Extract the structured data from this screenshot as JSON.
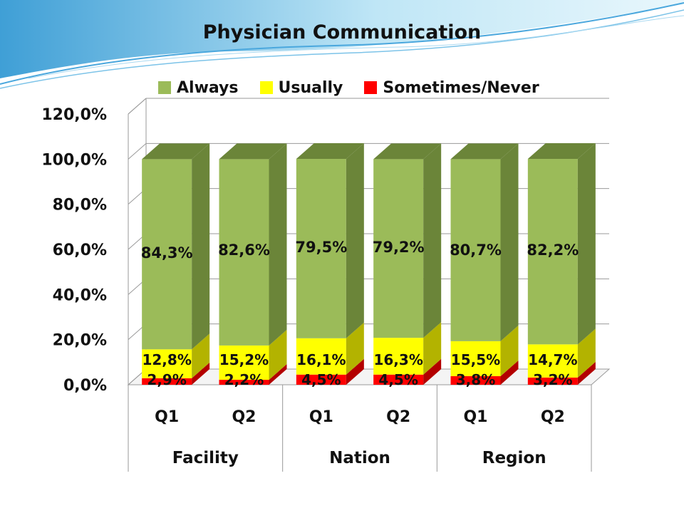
{
  "chart_data": {
    "type": "bar",
    "stacked": true,
    "title": "Physician Communication",
    "groups": [
      {
        "label": "Facility",
        "categories": [
          "Q1",
          "Q2"
        ]
      },
      {
        "label": "Nation",
        "categories": [
          "Q1",
          "Q2"
        ]
      },
      {
        "label": "Region",
        "categories": [
          "Q1",
          "Q2"
        ]
      }
    ],
    "categories": [
      "Q1",
      "Q2",
      "Q1",
      "Q2",
      "Q1",
      "Q2"
    ],
    "series": [
      {
        "name": "Sometimes/Never",
        "color": "#ff0000",
        "side_color": "#b30000",
        "values": [
          2.9,
          2.2,
          4.5,
          4.5,
          3.8,
          3.2
        ],
        "labels": [
          "2,9%",
          "2,2%",
          "4,5%",
          "4,5%",
          "3,8%",
          "3,2%"
        ]
      },
      {
        "name": "Usually",
        "color": "#ffff00",
        "side_color": "#b3b300",
        "values": [
          12.8,
          15.2,
          16.1,
          16.3,
          15.5,
          14.7
        ],
        "labels": [
          "12,8%",
          "15,2%",
          "16,1%",
          "16,3%",
          "15,5%",
          "14,7%"
        ]
      },
      {
        "name": "Always",
        "color": "#9bbb59",
        "side_color": "#6b8539",
        "values": [
          84.3,
          82.6,
          79.5,
          79.2,
          80.7,
          82.2
        ],
        "labels": [
          "84,3%",
          "82,6%",
          "79,5%",
          "79,2%",
          "80,7%",
          "82,2%"
        ]
      }
    ],
    "legend_order": [
      "Always",
      "Usually",
      "Sometimes/Never"
    ],
    "ylim": [
      0,
      120
    ],
    "yticks": [
      "0,0%",
      "20,0%",
      "40,0%",
      "60,0%",
      "80,0%",
      "100,0%",
      "120,0%"
    ],
    "legend_position": "top",
    "grid": true
  }
}
